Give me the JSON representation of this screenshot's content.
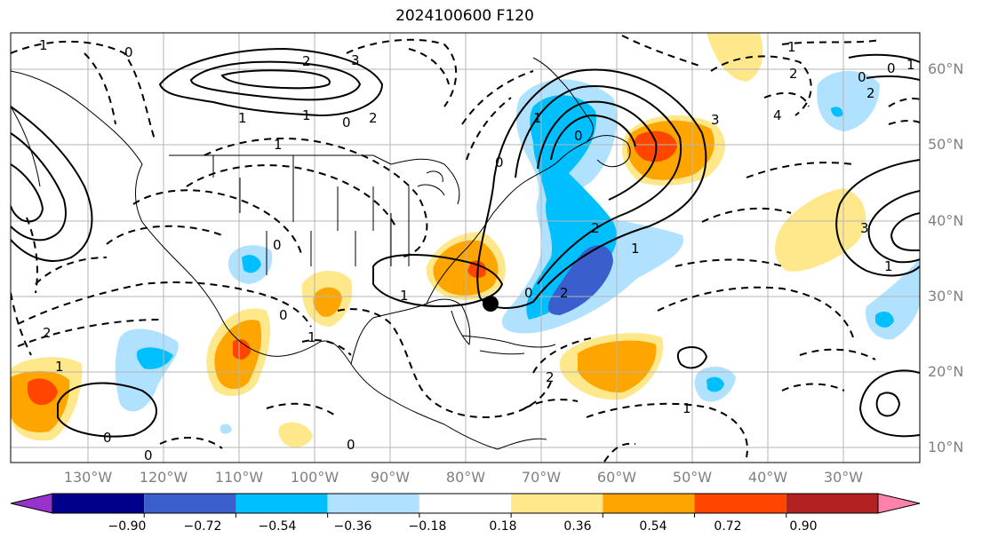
{
  "title": "2024100600 F120",
  "lat_labels": [
    "60°N",
    "50°N",
    "40°N",
    "30°N",
    "20°N",
    "10°N"
  ],
  "lon_labels": [
    "130°W",
    "120°W",
    "110°W",
    "100°W",
    "90°W",
    "80°W",
    "70°W",
    "60°W",
    "50°W",
    "40°W",
    "30°W"
  ],
  "colorbar": {
    "labels": [
      "−0.90",
      "−0.72",
      "−0.54",
      "−0.36",
      "−0.18",
      "0.18",
      "0.36",
      "0.54",
      "0.72",
      "0.90"
    ],
    "colors": [
      "#9932cc",
      "#00008b",
      "#3a5fcd",
      "#00bfff",
      "#b0e2ff",
      "#ffffff",
      "#ffe88c",
      "#ffa500",
      "#ff4500",
      "#b22222",
      "#ff82ab"
    ]
  },
  "contour_labels": [
    "1",
    "0",
    "2",
    "1",
    "0",
    "3",
    "1",
    "1",
    "2",
    "0",
    "1",
    "0",
    "2",
    "1",
    "2",
    "0",
    "1",
    "0",
    "1",
    "0",
    "2",
    "1",
    "0",
    "0",
    "2",
    "0",
    "3",
    "1",
    "2",
    "1",
    "4",
    "0",
    "1",
    "0",
    "2",
    "3",
    "1"
  ],
  "colors": {
    "fill_light_yellow": "#ffe88c",
    "fill_orange": "#ffa500",
    "fill_red": "#ff4500",
    "fill_light_blue": "#b0e2ff",
    "fill_blue": "#00bfff",
    "fill_dark_blue": "#3a5fcd"
  }
}
